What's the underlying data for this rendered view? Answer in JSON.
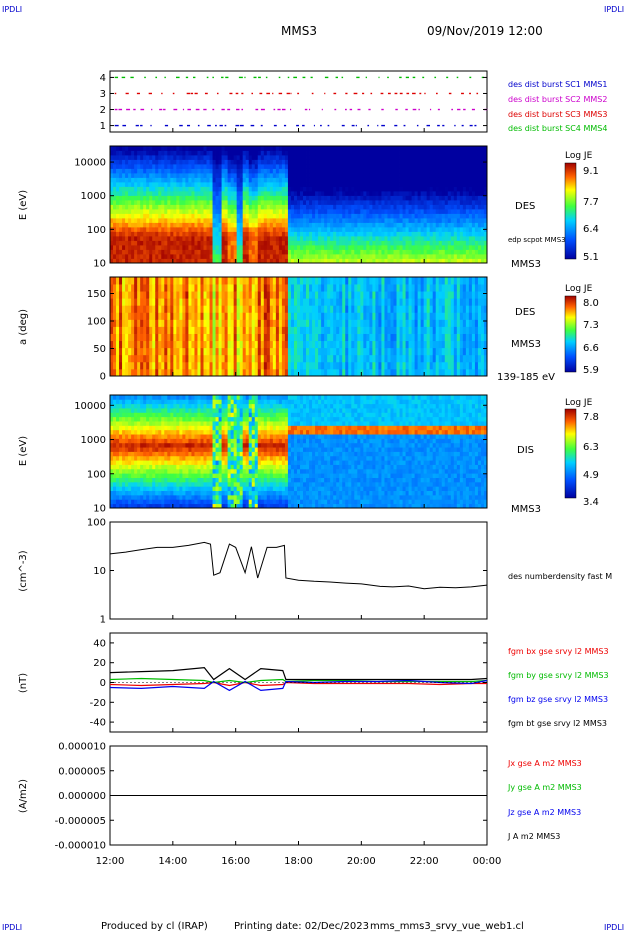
{
  "header": {
    "corner_tl": "IPDLI",
    "corner_tr": "IPDLI",
    "corner_bl": "IPDLI",
    "corner_br": "IPDLI",
    "spacecraft": "MMS3",
    "datetime": "09/Nov/2019 12:00"
  },
  "footer": {
    "produced_by": "Produced by cl (IRAP)",
    "printing_date": "Printing date: 02/Dec/2023",
    "filename": "mms_mms3_srvy_vue_web1.cl"
  },
  "time_axis": {
    "ticks": [
      "12:00",
      "14:00",
      "16:00",
      "18:00",
      "20:00",
      "22:00",
      "00:00"
    ],
    "range_hours": [
      12,
      24
    ]
  },
  "colors": {
    "mms1": "#0000cc",
    "mms2": "#cc00cc",
    "mms3": "#dd0000",
    "mms4": "#00bb00",
    "bx": "#ee0000",
    "by": "#00bb00",
    "bz": "#0000ee",
    "bt": "#000000"
  },
  "chart_data": [
    {
      "type": "scatter",
      "panel": "burst",
      "yticks": [
        "1",
        "2",
        "3",
        "4"
      ],
      "ylim": [
        0.6,
        4.4
      ],
      "legend": [
        "des dist burst SC1 MMS1",
        "des dist burst SC2 MMS2",
        "des dist burst SC3 MMS3",
        "des dist burst SC4 MMS4"
      ]
    },
    {
      "type": "heatmap",
      "panel": "des-energy",
      "ylabel": "E (eV)",
      "yscale": "log",
      "yticks": [
        "10",
        "100",
        "1000",
        "10000"
      ],
      "ylim": [
        10,
        30000
      ],
      "label_right": "DES",
      "label_bottom": "MMS3",
      "overlay_label": "edp scpot MMS3",
      "colorbar": {
        "title": "Log JE",
        "ticks": [
          "9.1",
          "7.7",
          "6.4",
          "5.1"
        ],
        "range": [
          5.1,
          9.1
        ]
      }
    },
    {
      "type": "heatmap",
      "panel": "des-pitch",
      "ylabel": "a (deg)",
      "yticks": [
        "0",
        "50",
        "100",
        "150"
      ],
      "ylim": [
        0,
        180
      ],
      "label_right": "DES",
      "label_bottom": "MMS3",
      "energy_band": "139-185 eV",
      "colorbar": {
        "title": "Log JE",
        "ticks": [
          "8.0",
          "7.3",
          "6.6",
          "5.9"
        ],
        "range": [
          5.9,
          8.0
        ]
      }
    },
    {
      "type": "heatmap",
      "panel": "dis-energy",
      "ylabel": "E (eV)",
      "yscale": "log",
      "yticks": [
        "10",
        "100",
        "1000",
        "10000"
      ],
      "ylim": [
        10,
        20000
      ],
      "label_right": "DIS",
      "label_bottom": "MMS3",
      "colorbar": {
        "title": "Log JE",
        "ticks": [
          "7.8",
          "6.3",
          "4.9",
          "3.4"
        ],
        "range": [
          3.4,
          7.8
        ]
      }
    },
    {
      "type": "line",
      "panel": "density",
      "ylabel": "(cm^-3)",
      "yscale": "log",
      "yticks": [
        "1",
        "10",
        "100"
      ],
      "ylim": [
        1,
        100
      ],
      "legend": [
        "des numberdensity fast M"
      ],
      "x_hours": [
        12.0,
        12.5,
        13.0,
        13.5,
        14.0,
        14.5,
        15.0,
        15.2,
        15.3,
        15.5,
        15.8,
        16.0,
        16.3,
        16.5,
        16.7,
        17.0,
        17.3,
        17.55,
        17.6,
        18.0,
        18.5,
        19.0,
        19.5,
        20.0,
        20.3,
        20.6,
        21.0,
        21.5,
        22.0,
        22.5,
        23.0,
        23.5,
        24.0
      ],
      "y": [
        22,
        24,
        27,
        30,
        30,
        33,
        38,
        35,
        8,
        9,
        35,
        30,
        9,
        31,
        7,
        30,
        30,
        33,
        7,
        6.3,
        6.0,
        5.8,
        5.5,
        5.3,
        5.0,
        4.7,
        4.6,
        4.8,
        4.2,
        4.5,
        4.4,
        4.6,
        5.0
      ]
    },
    {
      "type": "line",
      "panel": "magnetic-field",
      "ylabel": "(nT)",
      "yticks": [
        "-40",
        "-20",
        "0",
        "20",
        "40"
      ],
      "ylim": [
        -50,
        50
      ],
      "x_hours": [
        12.0,
        13.0,
        14.0,
        15.0,
        15.3,
        15.8,
        16.3,
        16.8,
        17.5,
        17.6,
        18.5,
        19.5,
        20.5,
        21.5,
        22.5,
        23.5,
        24.0
      ],
      "series": [
        {
          "name": "fgm bx gse srvy l2 MMS3",
          "y": [
            -2,
            -3,
            -2,
            -1,
            0,
            -3,
            0,
            -3,
            -2,
            0,
            -1,
            -1,
            -1,
            -1,
            -2,
            -1,
            -1
          ]
        },
        {
          "name": "fgm by gse srvy l2 MMS3",
          "y": [
            3,
            4,
            3,
            2,
            0,
            2,
            0,
            2,
            3,
            1,
            2,
            2,
            1,
            1,
            1,
            1,
            2
          ]
        },
        {
          "name": "fgm bz gse srvy l2 MMS3",
          "y": [
            -5,
            -6,
            -4,
            -6,
            1,
            -8,
            1,
            -8,
            -6,
            1,
            0,
            1,
            1,
            2,
            0,
            -1,
            2
          ]
        },
        {
          "name": "fgm bt gse srvy l2 MMS3",
          "y": [
            10,
            11,
            12,
            15,
            3,
            14,
            3,
            14,
            12,
            3,
            3,
            3,
            3,
            3,
            3,
            3,
            4
          ]
        }
      ]
    },
    {
      "type": "line",
      "panel": "current-density",
      "ylabel": "(A/m2)",
      "yticks": [
        "0.000010",
        "0.000005",
        "0.000000",
        "-0.000005",
        "-0.000010"
      ],
      "ylim": [
        -1e-05,
        1e-05
      ],
      "x_hours": [
        12.0,
        15.0,
        16.0,
        17.0,
        18.0,
        20.0,
        22.0,
        24.0
      ],
      "series": [
        {
          "name": "Jx gse A m2 MMS3",
          "y": [
            0,
            0,
            0,
            0,
            0,
            0,
            0,
            0
          ]
        },
        {
          "name": "Jy gse A m2 MMS3",
          "y": [
            0,
            0,
            0,
            0,
            0,
            0,
            0,
            0
          ]
        },
        {
          "name": "Jz gse A m2 MMS3",
          "y": [
            0,
            0,
            0,
            0,
            0,
            0,
            0,
            0
          ]
        },
        {
          "name": "J A m2 MMS3",
          "y": [
            0,
            0,
            0,
            0,
            0,
            0,
            0,
            0
          ]
        }
      ]
    }
  ]
}
